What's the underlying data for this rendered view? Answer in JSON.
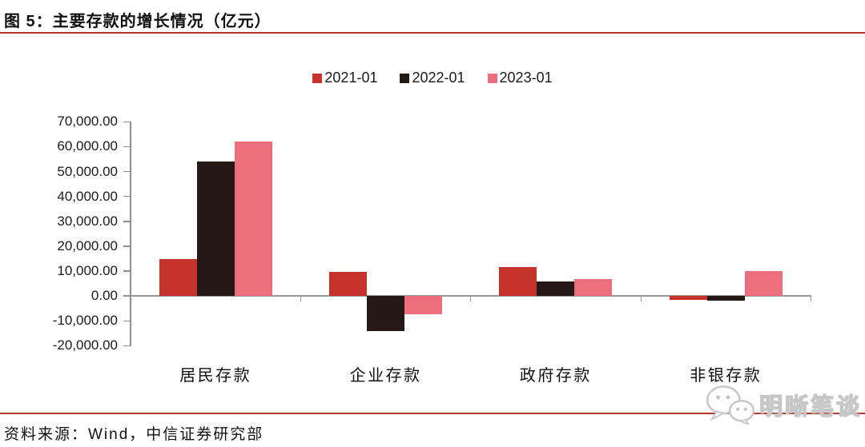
{
  "header": {
    "title": "图 5：主要存款的增长情况（亿元）"
  },
  "footer": {
    "source": "资料来源：Wind，中信证券研究部",
    "watermark": "明晰笔谈"
  },
  "colors": {
    "accent_rule_red": "#b5382e",
    "axis_gray": "#8f8f8f",
    "text": "#111111",
    "watermark_gray": "#c7c7c7"
  },
  "icons": {
    "watermark_icon": "wechat-icon"
  },
  "chart_data": {
    "type": "bar",
    "title": "主要存款的增长情况",
    "unit": "亿元",
    "categories": [
      "居民存款",
      "企业存款",
      "政府存款",
      "非银存款"
    ],
    "series": [
      {
        "name": "2021-01",
        "color": "#c5322b",
        "values": [
          14800,
          9700,
          11700,
          -1600
        ]
      },
      {
        "name": "2022-01",
        "color": "#231815",
        "values": [
          54100,
          -14000,
          5800,
          -1900
        ]
      },
      {
        "name": "2023-01",
        "color": "#ed6e7d",
        "values": [
          62000,
          -7200,
          6800,
          10100
        ]
      }
    ],
    "ylim": [
      -20000,
      70000
    ],
    "y_tick_interval": 10000,
    "y_tick_labels": [
      "70,000.00",
      "60,000.00",
      "50,000.00",
      "40,000.00",
      "30,000.00",
      "20,000.00",
      "10,000.00",
      "0.00",
      "-10,000.00",
      "-20,000.00"
    ],
    "xlabel": "",
    "ylabel": "",
    "grid": false,
    "legend_position": "top-center"
  }
}
